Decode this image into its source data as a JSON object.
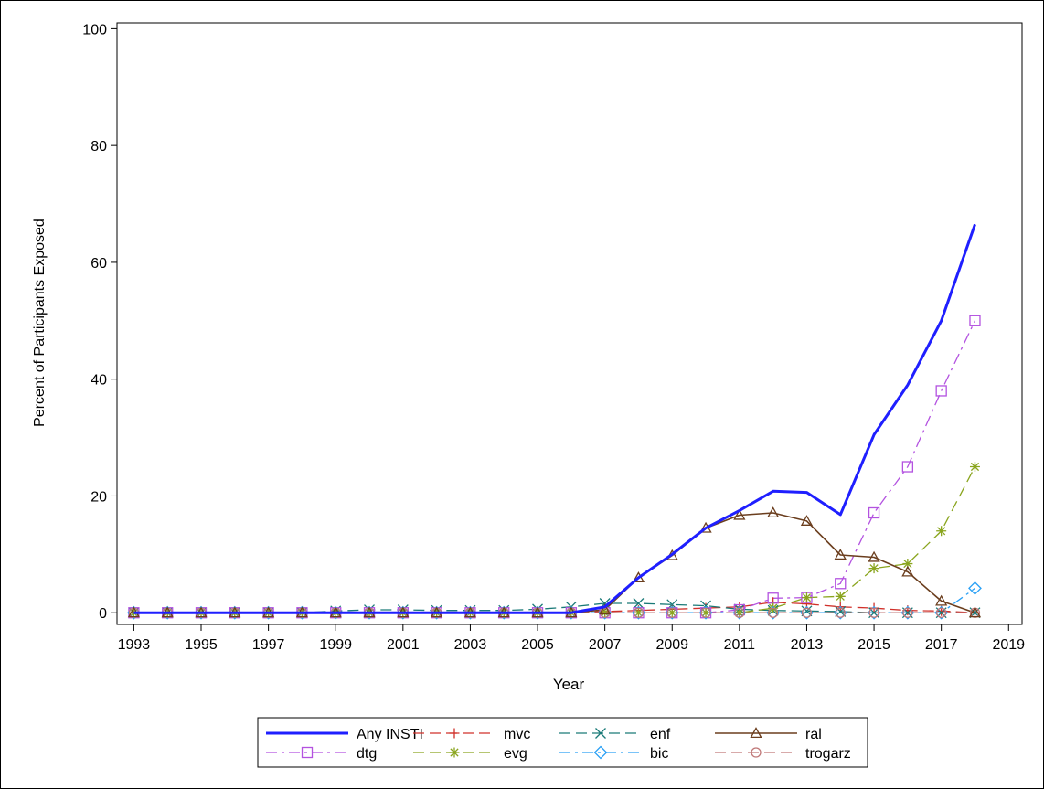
{
  "chart_data": {
    "type": "line",
    "xlabel": "Year",
    "ylabel": "Percent of Participants Exposed",
    "xlim": [
      1992.5,
      2019.4
    ],
    "ylim": [
      -2,
      101
    ],
    "xticks": [
      1993,
      1995,
      1997,
      1999,
      2001,
      2003,
      2005,
      2007,
      2009,
      2011,
      2013,
      2015,
      2017,
      2019
    ],
    "xtick_labels": [
      "1993",
      "1995",
      "1997",
      "1999",
      "2001",
      "2003",
      "2005",
      "2007",
      "2009",
      "2011",
      "2013",
      "2015",
      "2017",
      "2019"
    ],
    "yticks": [
      0,
      20,
      40,
      60,
      80,
      100
    ],
    "ytick_labels": [
      "0",
      "20",
      "40",
      "60",
      "80",
      "100"
    ],
    "grid": false,
    "legend_position": "bottom",
    "x": [
      1993,
      1994,
      1995,
      1996,
      1997,
      1998,
      1999,
      2000,
      2001,
      2002,
      2003,
      2004,
      2005,
      2006,
      2007,
      2008,
      2009,
      2010,
      2011,
      2012,
      2013,
      2014,
      2015,
      2016,
      2017,
      2018
    ],
    "series": [
      {
        "name": "Any INSTI",
        "color": "#1f1fff",
        "dash": "solid",
        "marker": "none",
        "width": 3,
        "values": [
          0,
          0,
          0,
          0,
          0,
          0,
          0,
          0,
          0,
          0,
          0,
          0,
          0,
          0,
          1,
          6,
          10,
          14.5,
          17.5,
          20.8,
          20.6,
          16.8,
          30.5,
          39,
          50,
          66.5
        ]
      },
      {
        "name": "mvc",
        "color": "#d0302a",
        "dash": "longdash",
        "marker": "plus",
        "width": 1.3,
        "values": [
          0,
          0,
          0,
          0,
          0,
          0,
          0,
          0,
          0,
          0,
          0,
          0,
          0,
          0,
          0.2,
          0.4,
          0.6,
          0.8,
          1,
          1.8,
          1.5,
          1,
          0.8,
          0.4,
          0.3,
          0
        ]
      },
      {
        "name": "enf",
        "color": "#1a7a78",
        "dash": "longdash",
        "marker": "x",
        "width": 1.3,
        "values": [
          0,
          0,
          0,
          0,
          0,
          0,
          0.3,
          0.5,
          0.5,
          0.4,
          0.4,
          0.4,
          0.6,
          1,
          1.6,
          1.6,
          1.4,
          1.2,
          0.6,
          0.4,
          0.3,
          0.2,
          0,
          0,
          0,
          0
        ]
      },
      {
        "name": "ral",
        "color": "#6b3e1e",
        "dash": "solid",
        "marker": "triangle",
        "width": 1.6,
        "values": [
          0,
          0,
          0,
          0,
          0,
          0,
          0,
          0,
          0,
          0,
          0,
          0,
          0,
          0,
          0.5,
          6,
          9.8,
          14.5,
          16.7,
          17.1,
          15.7,
          9.9,
          9.5,
          7,
          2,
          0
        ]
      },
      {
        "name": "dtg",
        "color": "#b352e0",
        "dash": "dashdot",
        "marker": "square",
        "width": 1.3,
        "values": [
          0,
          0,
          0,
          0,
          0,
          0,
          0,
          0,
          0,
          0,
          0,
          0,
          0,
          0,
          0,
          0,
          0,
          0,
          0.5,
          2.5,
          2.6,
          5,
          17.1,
          25,
          38,
          50
        ]
      },
      {
        "name": "evg",
        "color": "#8aa51e",
        "dash": "longdash",
        "marker": "star",
        "width": 1.3,
        "values": [
          0,
          0,
          0,
          0,
          0,
          0,
          0,
          0,
          0,
          0,
          0,
          0,
          0,
          0,
          0,
          0,
          0,
          0,
          0,
          0.8,
          2.6,
          2.8,
          7.6,
          8.4,
          14,
          25
        ]
      },
      {
        "name": "bic",
        "color": "#2aa0f5",
        "dash": "dashdot",
        "marker": "diamond",
        "width": 1.3,
        "values": [
          0,
          0,
          0,
          0,
          0,
          0,
          0,
          0,
          0,
          0,
          0,
          0,
          0,
          0,
          0,
          0,
          0,
          0,
          0,
          0,
          0,
          0,
          0,
          0,
          0,
          4.2
        ]
      },
      {
        "name": "trogarz",
        "color": "#c07878",
        "dash": "longdash",
        "marker": "circle",
        "width": 1.3,
        "values": [
          0,
          0,
          0,
          0,
          0,
          0,
          0,
          0,
          0,
          0,
          0,
          0,
          0,
          0,
          0,
          0,
          0,
          0,
          0,
          0,
          0,
          0,
          0,
          0,
          0,
          0
        ]
      }
    ]
  }
}
